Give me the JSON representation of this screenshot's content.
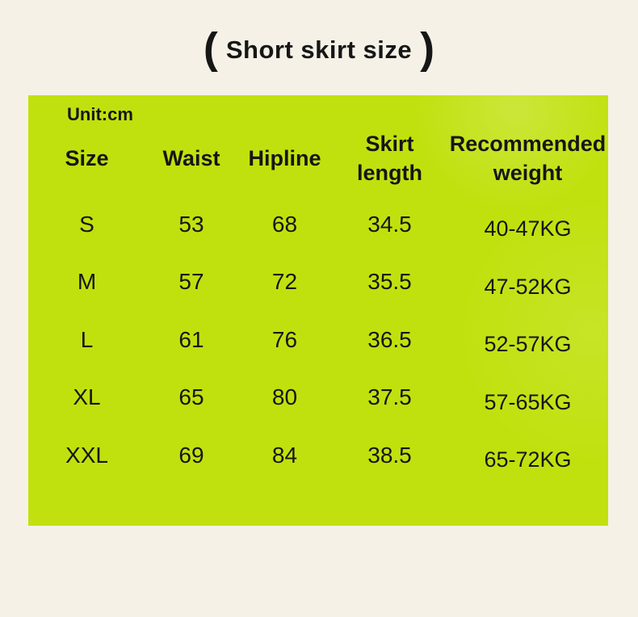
{
  "title": {
    "open": "(",
    "text": "Short skirt size",
    "close": ")"
  },
  "panel": {
    "unit_label": "Unit:cm"
  },
  "chart_data": {
    "type": "table",
    "title": "(Short skirt size)",
    "unit": "cm",
    "columns": [
      "Size",
      "Waist",
      "Hipline",
      "Skirt length",
      "Recommended weight"
    ],
    "columns_display": [
      "Size",
      "Waist",
      "Hipline",
      "Skirt\nlength",
      "Recommended\nweight"
    ],
    "rows": [
      [
        "S",
        "53",
        "68",
        "34.5",
        "40-47KG"
      ],
      [
        "M",
        "57",
        "72",
        "35.5",
        "47-52KG"
      ],
      [
        "L",
        "61",
        "76",
        "36.5",
        "52-57KG"
      ],
      [
        "XL",
        "65",
        "80",
        "37.5",
        "57-65KG"
      ],
      [
        "XXL",
        "69",
        "84",
        "38.5",
        "65-72KG"
      ]
    ]
  },
  "colors": {
    "background": "#f5f1e7",
    "panel_green": "#c1e10e",
    "text": "#161616"
  }
}
